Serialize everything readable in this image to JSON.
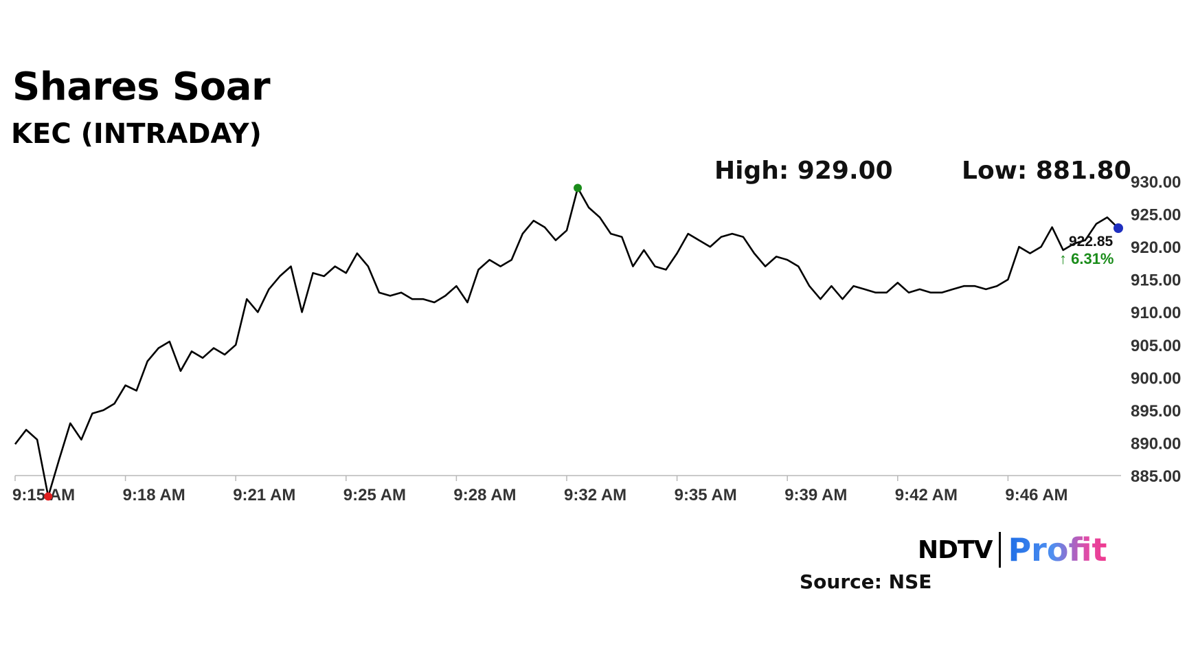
{
  "header": {
    "title": "Shares Soar",
    "subtitle": "KEC (INTRADAY)",
    "high_label": "High: 929.00",
    "low_label": "Low: 881.80"
  },
  "last_price": {
    "value": "922.85",
    "change": "6.31%",
    "arrow": "↑"
  },
  "footer": {
    "logo_left": "NDTV",
    "logo_right": "Profit",
    "source": "Source: NSE"
  },
  "colors": {
    "line": "#000000",
    "high_marker": "#1a8c1a",
    "low_marker": "#e02020",
    "last_marker": "#1f2fbf",
    "change_up": "#1a8c1a",
    "axis": "#b8b8b8"
  },
  "chart_data": {
    "type": "line",
    "title": "Shares Soar",
    "subtitle": "KEC (INTRADAY)",
    "x_tick_labels": [
      "9:15 AM",
      "9:18 AM",
      "9:21 AM",
      "9:25 AM",
      "9:28 AM",
      "9:32 AM",
      "9:35 AM",
      "9:39 AM",
      "9:42 AM",
      "9:46 AM"
    ],
    "y_tick_labels": [
      "885.00",
      "890.00",
      "895.00",
      "900.00",
      "905.00",
      "910.00",
      "915.00",
      "920.00",
      "925.00",
      "930.00"
    ],
    "ylim": [
      885,
      930
    ],
    "grid": false,
    "series": [
      {
        "x": [
          "9:15",
          "9:15",
          "9:15",
          "9:16",
          "9:16",
          "9:16",
          "9:16",
          "9:17",
          "9:17",
          "9:17",
          "9:18",
          "9:18",
          "9:18",
          "9:19",
          "9:19",
          "9:19",
          "9:20",
          "9:20",
          "9:20",
          "9:21",
          "9:21",
          "9:21",
          "9:22",
          "9:22",
          "9:22",
          "9:23",
          "9:23",
          "9:23",
          "9:24",
          "9:24",
          "9:24",
          "9:25",
          "9:25",
          "9:25",
          "9:26",
          "9:26",
          "9:26",
          "9:27",
          "9:27",
          "9:27",
          "9:28",
          "9:28",
          "9:28",
          "9:29",
          "9:29",
          "9:29",
          "9:30",
          "9:30",
          "9:30",
          "9:31",
          "9:31",
          "9:31",
          "9:32",
          "9:32",
          "9:32",
          "9:33",
          "9:33",
          "9:33",
          "9:34",
          "9:34",
          "9:34",
          "9:35",
          "9:35",
          "9:35",
          "9:36",
          "9:36",
          "9:36",
          "9:37",
          "9:37",
          "9:37",
          "9:38",
          "9:38",
          "9:38",
          "9:39",
          "9:39",
          "9:39",
          "9:40",
          "9:40",
          "9:40",
          "9:41",
          "9:41",
          "9:41",
          "9:42",
          "9:42",
          "9:42",
          "9:43",
          "9:43",
          "9:43",
          "9:44",
          "9:44",
          "9:44",
          "9:45",
          "9:45",
          "9:45",
          "9:46",
          "9:46",
          "9:46",
          "9:47",
          "9:47",
          "9:47",
          "9:48"
        ],
        "y": [
          889.8,
          892.0,
          890.5,
          881.8,
          887.5,
          893.0,
          890.5,
          894.5,
          895.0,
          896.0,
          898.8,
          898.0,
          902.5,
          904.5,
          905.5,
          901.0,
          904.0,
          903.0,
          904.5,
          903.5,
          905.0,
          912.0,
          910.0,
          913.5,
          915.5,
          917.0,
          910.0,
          916.0,
          915.5,
          917.0,
          916.0,
          919.0,
          917.0,
          913.0,
          912.5,
          913.0,
          912.0,
          912.0,
          911.5,
          912.5,
          914.0,
          911.5,
          916.5,
          918.0,
          917.0,
          918.0,
          922.0,
          924.0,
          923.0,
          921.0,
          922.5,
          929.0,
          926.0,
          924.5,
          922.0,
          921.5,
          917.0,
          919.5,
          917.0,
          916.5,
          919.0,
          922.0,
          921.0,
          920.0,
          921.5,
          922.0,
          921.5,
          919.0,
          917.0,
          918.5,
          918.0,
          917.0,
          914.0,
          912.0,
          914.0,
          912.0,
          914.0,
          913.5,
          913.0,
          913.0,
          914.5,
          913.0,
          913.5,
          913.0,
          913.0,
          913.5,
          914.0,
          914.0,
          913.5,
          914.0,
          915.0,
          920.0,
          919.0,
          920.0,
          923.0,
          919.5,
          920.5,
          921.0,
          923.5,
          924.5,
          922.85
        ],
        "markers": {
          "high": 929.0,
          "low": 881.8,
          "last": 922.85
        }
      }
    ]
  }
}
